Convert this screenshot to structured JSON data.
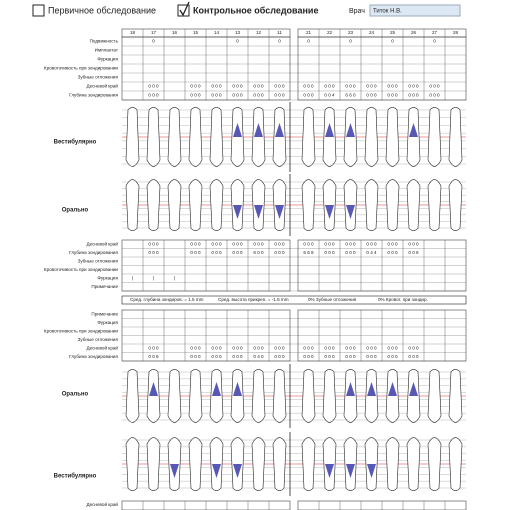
{
  "header": {
    "primary": "Первичное обследование",
    "control": "Контрольное обследование",
    "doctor_label": "Врач",
    "doctor_name": "Титок Н.В."
  },
  "upper": {
    "teeth": [
      18,
      17,
      16,
      15,
      14,
      13,
      12,
      11,
      21,
      22,
      23,
      24,
      25,
      26,
      27,
      28
    ],
    "vestibular_rows": [
      {
        "label": "Подвижность",
        "cells": [
          null,
          "0",
          null,
          null,
          null,
          "0",
          null,
          "0",
          "0",
          null,
          "0",
          null,
          "0",
          null,
          "0",
          null
        ]
      },
      {
        "label": "Имплантат"
      },
      {
        "label": "Фуркация"
      },
      {
        "label": "Кровоточивость при зондировании"
      },
      {
        "label": "Зубные отложения"
      },
      {
        "label": "Десневой край",
        "cells": [
          null,
          "0 0 0",
          null,
          "0 0 0",
          "0 0 0",
          "0 0 0",
          "0 0 0",
          "0 0 0",
          "0 0 0",
          "0 0 0",
          "0 0 0",
          "0 0 0",
          "0 0 0",
          "0 0 0",
          "0 0 0",
          null
        ]
      },
      {
        "label": "Глубина зондирования",
        "cells": [
          null,
          "0 0 0",
          null,
          "0 0 0",
          "0 0 0",
          "0 0 0",
          "0 0 0",
          "0 0 0",
          "0 0 0",
          "0 0 4",
          "6 6 0",
          "0 0 0",
          "0 0 0",
          "0 0 0",
          "0 0 0",
          null
        ]
      }
    ],
    "vestibular_label": "Вестибулярно",
    "oral_label": "Орально",
    "oral_rows": [
      {
        "label": "Десневой край",
        "cells": [
          null,
          "0 0 0",
          null,
          "0 0 0",
          "0 0 0",
          "0 0 0",
          "0 0 0",
          "0 0 0",
          "0 0 0",
          "0 0 0",
          "0 0 0",
          "0 0 0",
          "0 0 0",
          "0 0 0",
          null,
          null
        ]
      },
      {
        "label": "Глубина зондирования",
        "cells": [
          null,
          "0 0 0",
          null,
          "0 0 0",
          "0 0 0",
          "0 0 0",
          "6 0 0",
          "0 0 0",
          "6 6 9",
          "0 0 0",
          "0 0 0",
          "0 4 4",
          "0 0 0",
          "0 0 6",
          null,
          null
        ]
      },
      {
        "label": "Зубные отложения"
      },
      {
        "label": "Кровоточивость при зондировании"
      },
      {
        "label": "Фуркация",
        "cells": [
          "|",
          "|",
          "|",
          null,
          null,
          null,
          null,
          null,
          null,
          null,
          null,
          null,
          null,
          null,
          null,
          null
        ]
      },
      {
        "label": "Примечание"
      }
    ]
  },
  "summary": [
    "Сред. глубина зондиров. = 1.5 mm",
    "Сред. высота прикреп. = -1.5 mm",
    "0% Зубные отложения",
    "0% Кровот. при зондир."
  ],
  "lower": {
    "rows": [
      {
        "label": "Примечание"
      },
      {
        "label": "Фуркация"
      },
      {
        "label": "Кровоточивость при зондировании"
      },
      {
        "label": "Зубные отложения"
      },
      {
        "label": "Десневой край",
        "cells": [
          null,
          "0 0 0",
          null,
          "0 0 0",
          "0 0 0",
          "0 0 0",
          "0 0 0",
          "0 0 0",
          "0 0 0",
          "0 0 0",
          "0 0 0",
          "0 0 0",
          "0 0 0",
          "0 0 0",
          null,
          null
        ]
      },
      {
        "label": "Глубина зондирования",
        "cells": [
          null,
          "0 0 6",
          null,
          "0 0 0",
          "0 0 0",
          "0 0 0",
          "0 4 0",
          "0 0 0",
          "0 0 0",
          "0 0 0",
          "0 0 0",
          "0 0 0",
          "0 0 0",
          "0 0 0",
          null,
          null
        ]
      }
    ],
    "oral_label": "Орально",
    "vestibular_label": "Вестибулярно",
    "bottom_row": "Десневой край"
  }
}
